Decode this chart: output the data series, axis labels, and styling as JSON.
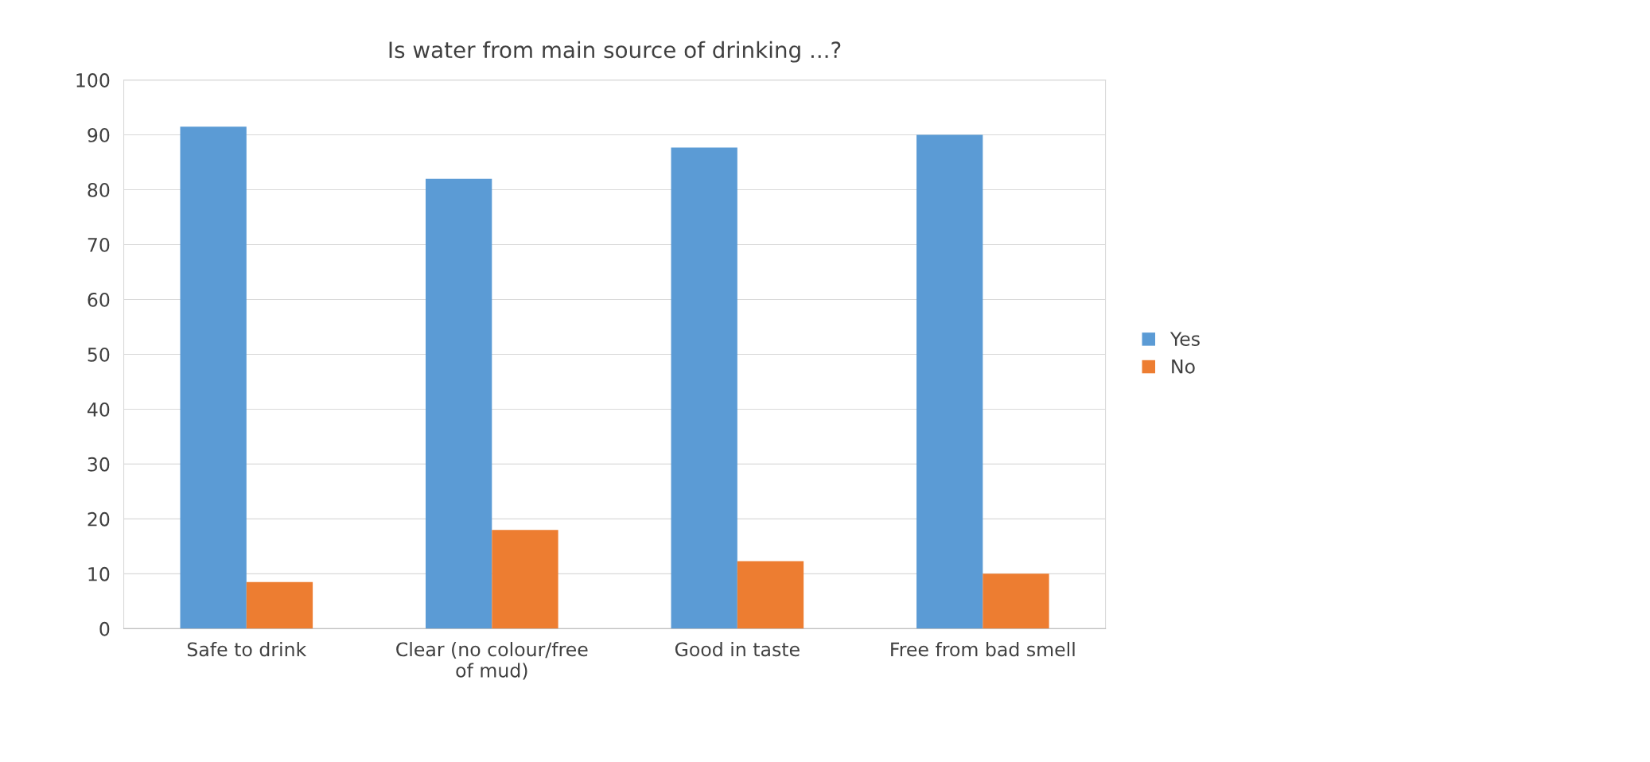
{
  "chart_data": {
    "type": "bar",
    "title": "Is water from main source of drinking ...?",
    "categories": [
      "Safe to drink",
      "Clear (no colour/free\nof mud)",
      "Good in taste",
      "Free from bad smell"
    ],
    "series": [
      {
        "name": "Yes",
        "color": "#5b9bd5",
        "values": [
          91.5,
          82,
          87.7,
          90
        ]
      },
      {
        "name": "No",
        "color": "#ed7d31",
        "values": [
          8.5,
          18,
          12.3,
          10
        ]
      }
    ],
    "ylim": [
      0,
      100
    ],
    "yticks": [
      0,
      10,
      20,
      30,
      40,
      50,
      60,
      70,
      80,
      90,
      100
    ],
    "grid": "y",
    "legend": "right"
  }
}
